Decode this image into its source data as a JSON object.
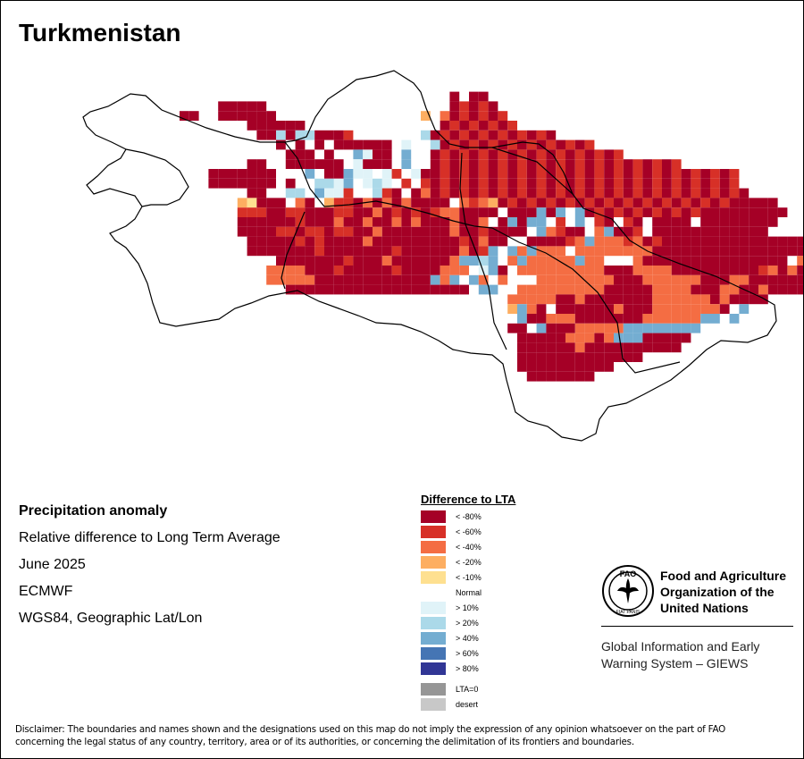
{
  "title": "Turkmenistan",
  "info": {
    "heading": "Precipitation anomaly",
    "subtitle": "Relative difference to Long Term Average",
    "period": "June 2025",
    "source": "ECMWF",
    "projection": "WGS84, Geographic Lat/Lon"
  },
  "legend": {
    "title": "Difference to LTA",
    "classes": [
      {
        "label": "< -80%",
        "color": "#a50026"
      },
      {
        "label": "< -60%",
        "color": "#d73027"
      },
      {
        "label": "< -40%",
        "color": "#f46d43"
      },
      {
        "label": "< -20%",
        "color": "#fdae61"
      },
      {
        "label": "< -10%",
        "color": "#fee090"
      },
      {
        "label": "Normal",
        "color": "#ffffff"
      },
      {
        "label": "> 10%",
        "color": "#e0f3f8"
      },
      {
        "label": "> 20%",
        "color": "#abd9e9"
      },
      {
        "label": "> 40%",
        "color": "#74add1"
      },
      {
        "label": "> 60%",
        "color": "#4575b4"
      },
      {
        "label": "> 80%",
        "color": "#313695"
      }
    ],
    "extra": [
      {
        "label": "LTA=0",
        "color": "#969696"
      },
      {
        "label": "desert",
        "color": "#c8c8c8"
      }
    ]
  },
  "org": {
    "name_line1": "Food and Agriculture",
    "name_line2": "Organization of the",
    "name_line3": "United Nations",
    "logo_text": "FAO",
    "logo_motto": "FIAT PANIS",
    "program_line1": "Global Information and Early",
    "program_line2": "Warning System – GIEWS"
  },
  "disclaimer_line1": "Disclaimer: The boundaries and names shown and the designations used on this map do not imply the expression of any opinion whatsoever on the part of FAO",
  "disclaimer_line2": "concerning the legal status of any country, territory, area or of its authorities, or concerning the delimitation of its frontiers and boundaries.",
  "map_grid": {
    "class_codes": "1..5 = < -80% .. < -10%, 7..11 = > 10% .. > 80%, 12 = desert, 0 = normal/none",
    "rows": [
      "00000000000000000000000000000000000000000000000000000000000000000000000000000000000",
      "00000000000000000000000000000000000000000000000000000000000000000000000000000000000",
      "00000000000000000000000000000000000000101100000000000000000000000000000000000000000",
      "00000000000000111110000000000000000000121210000000000000000000000000000000000000000",
      "00000000001100111111000000000000000403121212000000000000000000000000000000000000000",
      "00000000000000000111111000000000000001212121200000000000000000000000000000000000000",
      "00000000000000000011818811120000000812121212121210000000000000000000000000000000000",
      "00000000000000000000101010111111070081212121212121212000000000000000000000000000000",
      "00000000000000000000011101009711090012121212121212121212000000000000000000000000000",
      "00000000000000000110011111107111090012121212121212121212121212000000000000000000000",
      "00000000000001111111000901197707207112121212121212121212121212121212000000000000000",
      "00000000000001111111010088790787020212121212121212121212121212121212000000000000000",
      "00000000000000000110088097720082101312121212121212121212121212121212100000000000000",
      "00000000000000004511103104221313131111032341212121212121212121212121111100000000000",
      "00000000000000002221122111221131212123311110111919091212121212121111111110000000000",
      "00000000000000001111112111311311313111311301919902090210210111101111111100000000000",
      "00000000000000001111221221221131111111311211110932110391120111111111111000000000000",
      "00000000000000000111112121111311111111121311001111239333231211111111111111110000000",
      "00000000000000000111111121111111211111131290939333033333333111111111111111111110000",
      "00000000000000000000111111121113111111399890393333393300031111111111111110311111000",
      "00000000000000000003333111211111211113330791033333333311133331111111112313111111110",
      "00000000000000000003333311111111111193909303000333333331113333331113311111111100000",
      "00000000000000000000011111111111111111110990033333333311111333311133113111110000000",
      "00000000000000000000000000000000000000000000333331131111111333333131111000000000000",
      "00000000000000000000000000000000000000000000493101111113111333333310900000000000000",
      "00000000000000000000000000000000000000000000091133311111113333339909000000000000000",
      "00000000000000000000000000000000000000000000110911133333999999990000000000000000000",
      "00000000000000000000000000000000000000000000011111333139991111100000000000000000000",
      "00000000000000000000000000000000000000000000011111131111111111000000000000000000000",
      "00000000000000000000000000000000000000000000011111111111110000000000000000000000000",
      "00000000000000000000000000000000000000000000011111111110000000000000000000000000000",
      "00000000000000000000000000000000000000000000001111111000000000000000000000000000000"
    ]
  }
}
